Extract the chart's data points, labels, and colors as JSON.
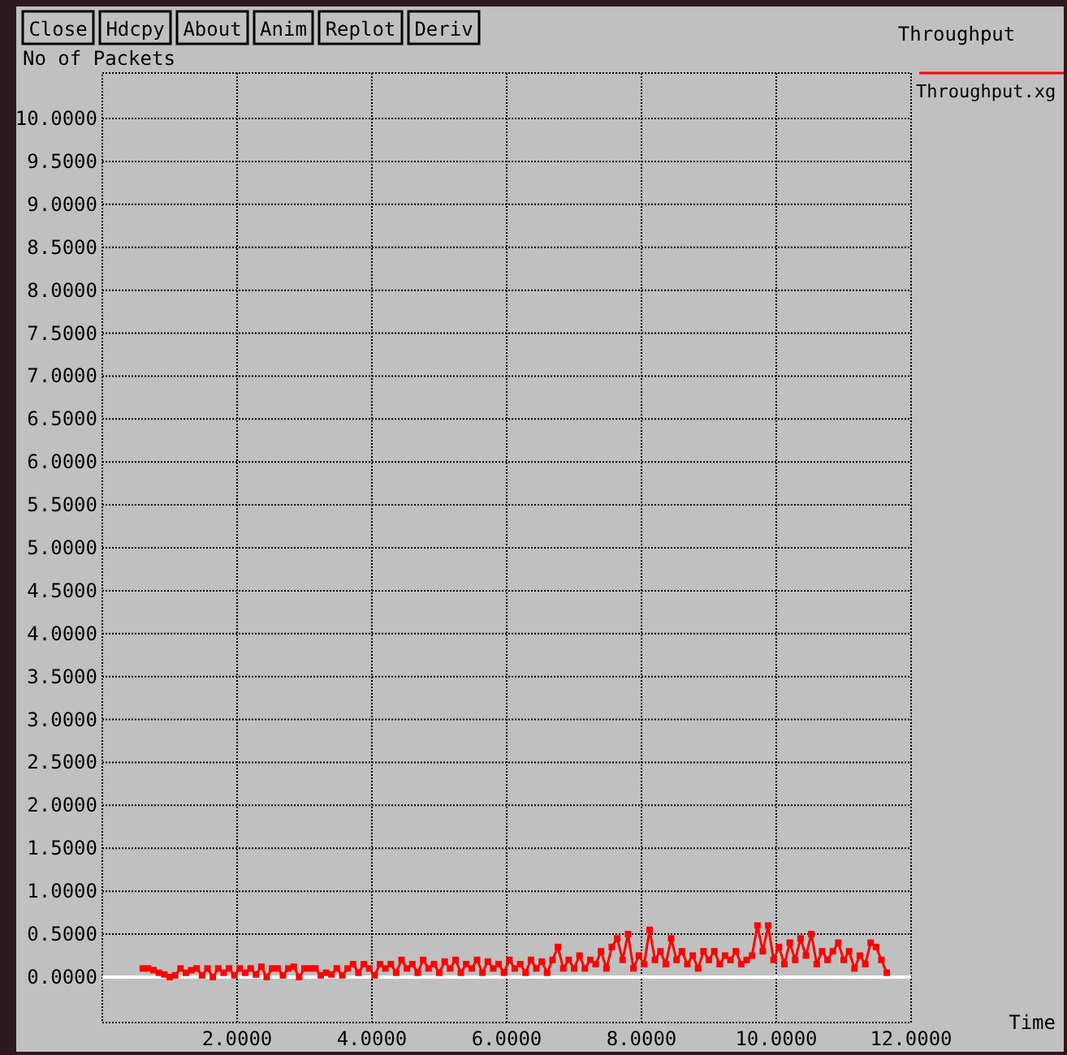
{
  "chart_data": {
    "type": "line",
    "title": "Throughput",
    "xlabel": "Time",
    "ylabel": "No of Packets",
    "annotations": [
      "Close",
      "Hdcpy",
      "About",
      "Anim",
      "Replot",
      "Deriv"
    ],
    "xlim": [
      0,
      12
    ],
    "ylim": [
      -0.53,
      10.53
    ],
    "xticks": [
      {
        "value": 2,
        "label": "2.0000"
      },
      {
        "value": 4,
        "label": "4.0000"
      },
      {
        "value": 6,
        "label": "6.0000"
      },
      {
        "value": 8,
        "label": "8.0000"
      },
      {
        "value": 10,
        "label": "10.0000"
      },
      {
        "value": 12,
        "label": "12.0000"
      }
    ],
    "yticks": [
      {
        "value": 0,
        "label": "0.0000"
      },
      {
        "value": 0.5,
        "label": "0.5000"
      },
      {
        "value": 1,
        "label": "1.0000"
      },
      {
        "value": 1.5,
        "label": "1.5000"
      },
      {
        "value": 2,
        "label": "2.0000"
      },
      {
        "value": 2.5,
        "label": "2.5000"
      },
      {
        "value": 3,
        "label": "3.0000"
      },
      {
        "value": 3.5,
        "label": "3.5000"
      },
      {
        "value": 4,
        "label": "4.0000"
      },
      {
        "value": 4.5,
        "label": "4.5000"
      },
      {
        "value": 5,
        "label": "5.0000"
      },
      {
        "value": 5.5,
        "label": "5.5000"
      },
      {
        "value": 6,
        "label": "6.0000"
      },
      {
        "value": 6.5,
        "label": "6.5000"
      },
      {
        "value": 7,
        "label": "7.0000"
      },
      {
        "value": 7.5,
        "label": "7.5000"
      },
      {
        "value": 8,
        "label": "8.0000"
      },
      {
        "value": 8.5,
        "label": "8.5000"
      },
      {
        "value": 9,
        "label": "9.0000"
      },
      {
        "value": 9.5,
        "label": "9.5000"
      },
      {
        "value": 10,
        "label": "10.0000"
      }
    ],
    "grid": true,
    "legend": "top right",
    "marker": "square",
    "line_style": "solid",
    "ref_lines": [
      {
        "axis": "y",
        "value": 0,
        "color": "#ffffff"
      }
    ],
    "x": [
      0.6,
      0.68,
      0.76,
      0.84,
      0.92,
      1.0,
      1.08,
      1.16,
      1.24,
      1.32,
      1.4,
      1.48,
      1.56,
      1.64,
      1.72,
      1.8,
      1.88,
      1.96,
      2.04,
      2.12,
      2.2,
      2.28,
      2.36,
      2.44,
      2.52,
      2.6,
      2.68,
      2.76,
      2.84,
      2.92,
      3.0,
      3.08,
      3.16,
      3.24,
      3.32,
      3.4,
      3.48,
      3.56,
      3.64,
      3.72,
      3.8,
      3.88,
      3.96,
      4.04,
      4.12,
      4.2,
      4.28,
      4.36,
      4.44,
      4.52,
      4.6,
      4.68,
      4.76,
      4.84,
      4.92,
      5.0,
      5.08,
      5.16,
      5.24,
      5.32,
      5.4,
      5.48,
      5.56,
      5.64,
      5.72,
      5.8,
      5.88,
      5.96,
      6.04,
      6.12,
      6.2,
      6.28,
      6.36,
      6.44,
      6.52,
      6.6,
      6.68,
      6.76,
      6.84,
      6.92,
      7.0,
      7.08,
      7.16,
      7.24,
      7.32,
      7.4,
      7.48,
      7.56,
      7.64,
      7.72,
      7.8,
      7.88,
      7.96,
      8.04,
      8.12,
      8.2,
      8.28,
      8.36,
      8.44,
      8.52,
      8.6,
      8.68,
      8.76,
      8.84,
      8.92,
      9.0,
      9.08,
      9.16,
      9.24,
      9.32,
      9.4,
      9.48,
      9.56,
      9.64,
      9.72,
      9.8,
      9.88,
      9.96,
      10.04,
      10.12,
      10.2,
      10.28,
      10.36,
      10.44,
      10.52,
      10.6,
      10.68,
      10.76,
      10.84,
      10.92,
      11.0,
      11.08,
      11.16,
      11.24,
      11.32,
      11.4,
      11.48,
      11.56,
      11.64
    ],
    "series": [
      {
        "name": "Throughput.xg",
        "color": "#ff0000",
        "values": [
          0.1,
          0.1,
          0.08,
          0.05,
          0.03,
          0,
          0.02,
          0.1,
          0.05,
          0.08,
          0.1,
          0.02,
          0.1,
          0,
          0.1,
          0.05,
          0.1,
          0.02,
          0.1,
          0.05,
          0.1,
          0.03,
          0.12,
          0,
          0.1,
          0.1,
          0.02,
          0.1,
          0.12,
          0,
          0.1,
          0.1,
          0.1,
          0.02,
          0.05,
          0.03,
          0.1,
          0.02,
          0.1,
          0.15,
          0.05,
          0.15,
          0.1,
          0.02,
          0.15,
          0.1,
          0.15,
          0.05,
          0.2,
          0.1,
          0.15,
          0.05,
          0.2,
          0.1,
          0.15,
          0.05,
          0.18,
          0.1,
          0.2,
          0.05,
          0.15,
          0.1,
          0.2,
          0.05,
          0.18,
          0.1,
          0.15,
          0.05,
          0.2,
          0.1,
          0.15,
          0.05,
          0.2,
          0.1,
          0.18,
          0.05,
          0.2,
          0.35,
          0.1,
          0.2,
          0.1,
          0.25,
          0.1,
          0.2,
          0.15,
          0.3,
          0.1,
          0.35,
          0.45,
          0.2,
          0.5,
          0.1,
          0.25,
          0.15,
          0.55,
          0.2,
          0.3,
          0.15,
          0.45,
          0.2,
          0.3,
          0.15,
          0.25,
          0.1,
          0.3,
          0.2,
          0.3,
          0.15,
          0.25,
          0.2,
          0.3,
          0.15,
          0.2,
          0.25,
          0.6,
          0.3,
          0.6,
          0.2,
          0.35,
          0.15,
          0.4,
          0.2,
          0.45,
          0.25,
          0.5,
          0.15,
          0.3,
          0.2,
          0.3,
          0.4,
          0.2,
          0.3,
          0.1,
          0.25,
          0.15,
          0.4,
          0.35,
          0.2,
          0.05
        ]
      }
    ]
  }
}
